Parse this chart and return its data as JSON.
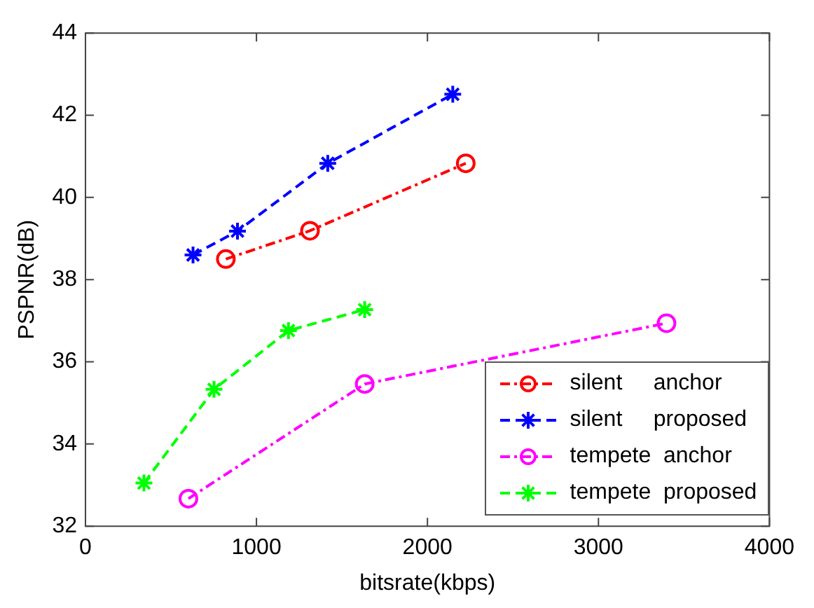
{
  "chart_data": {
    "type": "line",
    "xlabel": "bitsrate(kbps)",
    "ylabel": "PSPNR(dB)",
    "xlim": [
      0,
      4000
    ],
    "xticks": [
      0,
      1000,
      2000,
      3000,
      4000
    ],
    "ylim": [
      32,
      44
    ],
    "yticks": [
      32,
      34,
      36,
      38,
      40,
      42,
      44
    ],
    "grid": false,
    "legend": "bottom right",
    "series": [
      {
        "name": "silent     anchor",
        "color": "#ff0000",
        "marker": "circle",
        "line_style": "dashdot",
        "x": [
          821,
          1313,
          2224
        ],
        "values": [
          38.5,
          39.19,
          40.83
        ]
      },
      {
        "name": "silent     proposed",
        "color": "#0000ff",
        "marker": "cross",
        "line_style": "dashed",
        "x": [
          629,
          889,
          1417,
          2148
        ],
        "values": [
          38.6,
          39.18,
          40.83,
          42.51
        ]
      },
      {
        "name": "tempete  anchor",
        "color": "#ff00ff",
        "marker": "circle",
        "line_style": "dashdot",
        "x": [
          602,
          1633,
          3398
        ],
        "values": [
          32.67,
          35.46,
          36.94
        ]
      },
      {
        "name": "tempete  proposed",
        "color": "#00ff00",
        "marker": "cross",
        "line_style": "dashed",
        "x": [
          342,
          752,
          1187,
          1633
        ],
        "values": [
          33.05,
          35.33,
          36.76,
          37.27
        ]
      }
    ]
  }
}
